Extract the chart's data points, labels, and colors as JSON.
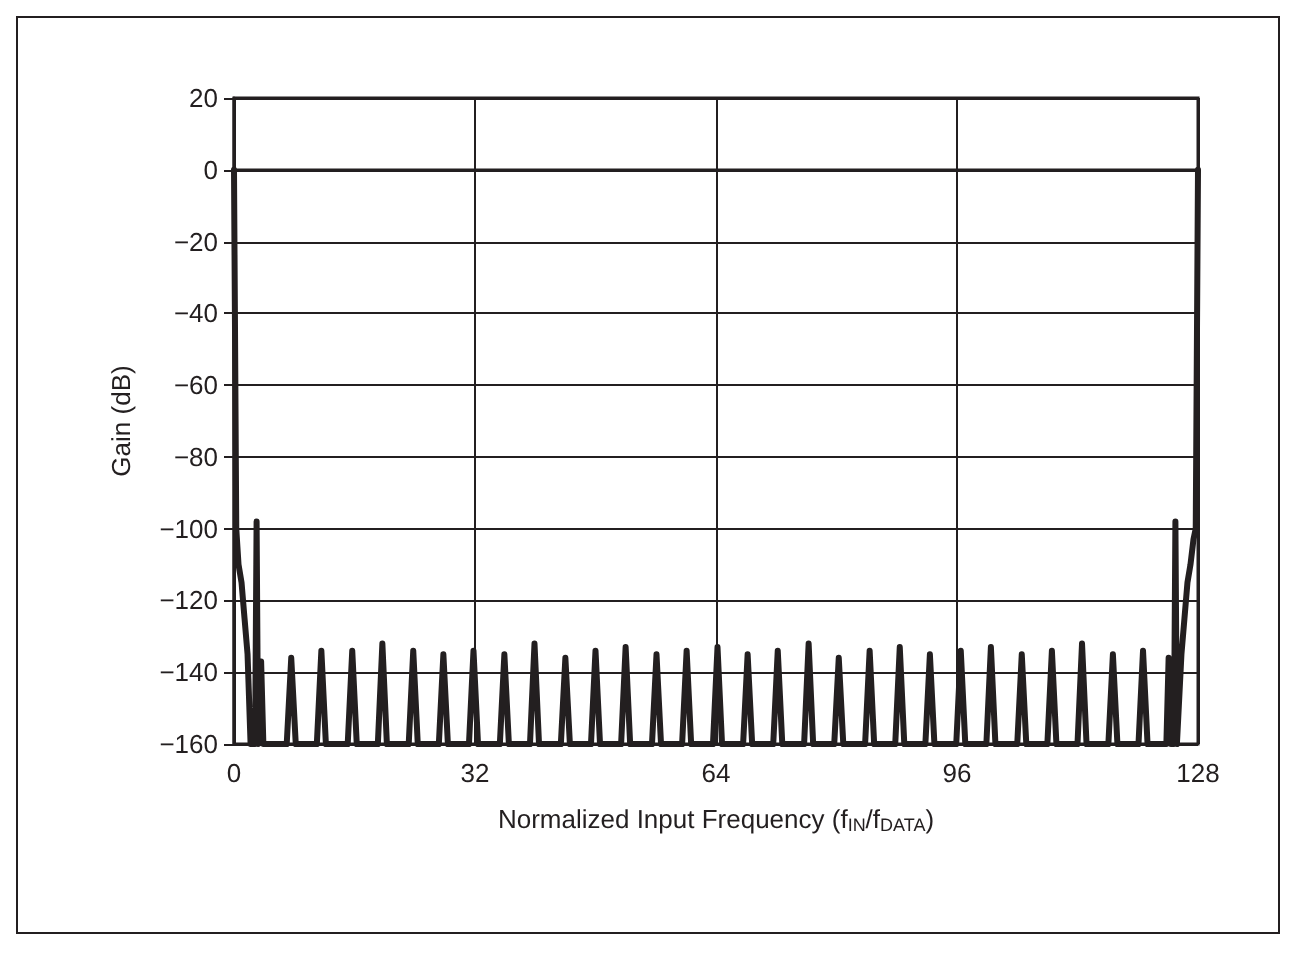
{
  "chart_data": {
    "type": "line",
    "xlabel": "Normalized Input Frequency (f$_{IN}$/f$_{DATA}$)",
    "ylabel": "Gain (dB)",
    "xlim": [
      0,
      128
    ],
    "xticks": [
      0,
      32,
      64,
      96,
      128
    ],
    "ylim": [
      -160,
      20
    ],
    "yticks": [
      -160,
      -140,
      -120,
      -100,
      -80,
      -60,
      -40,
      -20,
      0,
      20
    ],
    "grid": true,
    "marker": "none",
    "line_style": "solid",
    "series": [
      {
        "color": "#231f20",
        "x": [
          0,
          0.3,
          0.6,
          1,
          1.4,
          1.8,
          2.2,
          2.8,
          3,
          3.2,
          3.6,
          3.9,
          4.2,
          7,
          7.6,
          8.2,
          11,
          11.6,
          12.2,
          15.1,
          15.7,
          16.3,
          19.1,
          19.7,
          20.3,
          23.2,
          23.8,
          24.4,
          27.2,
          27.8,
          28.4,
          31.2,
          31.8,
          32.4,
          35.3,
          35.9,
          36.5,
          39.3,
          39.9,
          40.5,
          43.4,
          44,
          44.6,
          47.4,
          48,
          48.6,
          51.4,
          52,
          52.6,
          55.5,
          56.1,
          56.7,
          59.5,
          60.1,
          60.7,
          63.6,
          64.2,
          64.8,
          67.6,
          68.2,
          68.8,
          71.6,
          72.2,
          72.8,
          75.7,
          76.3,
          76.9,
          79.7,
          80.3,
          80.9,
          83.8,
          84.4,
          85,
          87.8,
          88.4,
          89,
          91.8,
          92.4,
          93,
          95.9,
          96.5,
          97.1,
          99.9,
          100.5,
          101.1,
          104,
          104.6,
          105.2,
          108,
          108.6,
          109.2,
          112,
          112.6,
          113.2,
          116.1,
          116.7,
          117.3,
          120.1,
          120.7,
          121.3,
          123.8,
          124.1,
          124.4,
          124.8,
          125,
          125.2,
          125.8,
          126.2,
          126.6,
          127,
          127.4,
          127.7,
          128
        ],
        "values": [
          0,
          -100,
          -110,
          -115,
          -125,
          -135,
          -160,
          -160,
          -98,
          -160,
          -137,
          -160,
          -160,
          -160,
          -136,
          -160,
          -160,
          -134,
          -160,
          -160,
          -134,
          -160,
          -160,
          -132,
          -160,
          -160,
          -134,
          -160,
          -160,
          -135,
          -160,
          -160,
          -134,
          -160,
          -160,
          -135,
          -160,
          -160,
          -132,
          -160,
          -160,
          -136,
          -160,
          -160,
          -134,
          -160,
          -160,
          -133,
          -160,
          -160,
          -135,
          -160,
          -160,
          -134,
          -160,
          -160,
          -133,
          -160,
          -160,
          -135,
          -160,
          -160,
          -134,
          -160,
          -160,
          -132,
          -160,
          -160,
          -136,
          -160,
          -160,
          -134,
          -160,
          -160,
          -133,
          -160,
          -160,
          -135,
          -160,
          -160,
          -134,
          -160,
          -160,
          -133,
          -160,
          -160,
          -135,
          -160,
          -160,
          -134,
          -160,
          -160,
          -132,
          -160,
          -160,
          -135,
          -160,
          -160,
          -134,
          -160,
          -160,
          -136,
          -160,
          -160,
          -98,
          -160,
          -135,
          -125,
          -115,
          -110,
          -103,
          -100,
          0
        ]
      }
    ]
  }
}
